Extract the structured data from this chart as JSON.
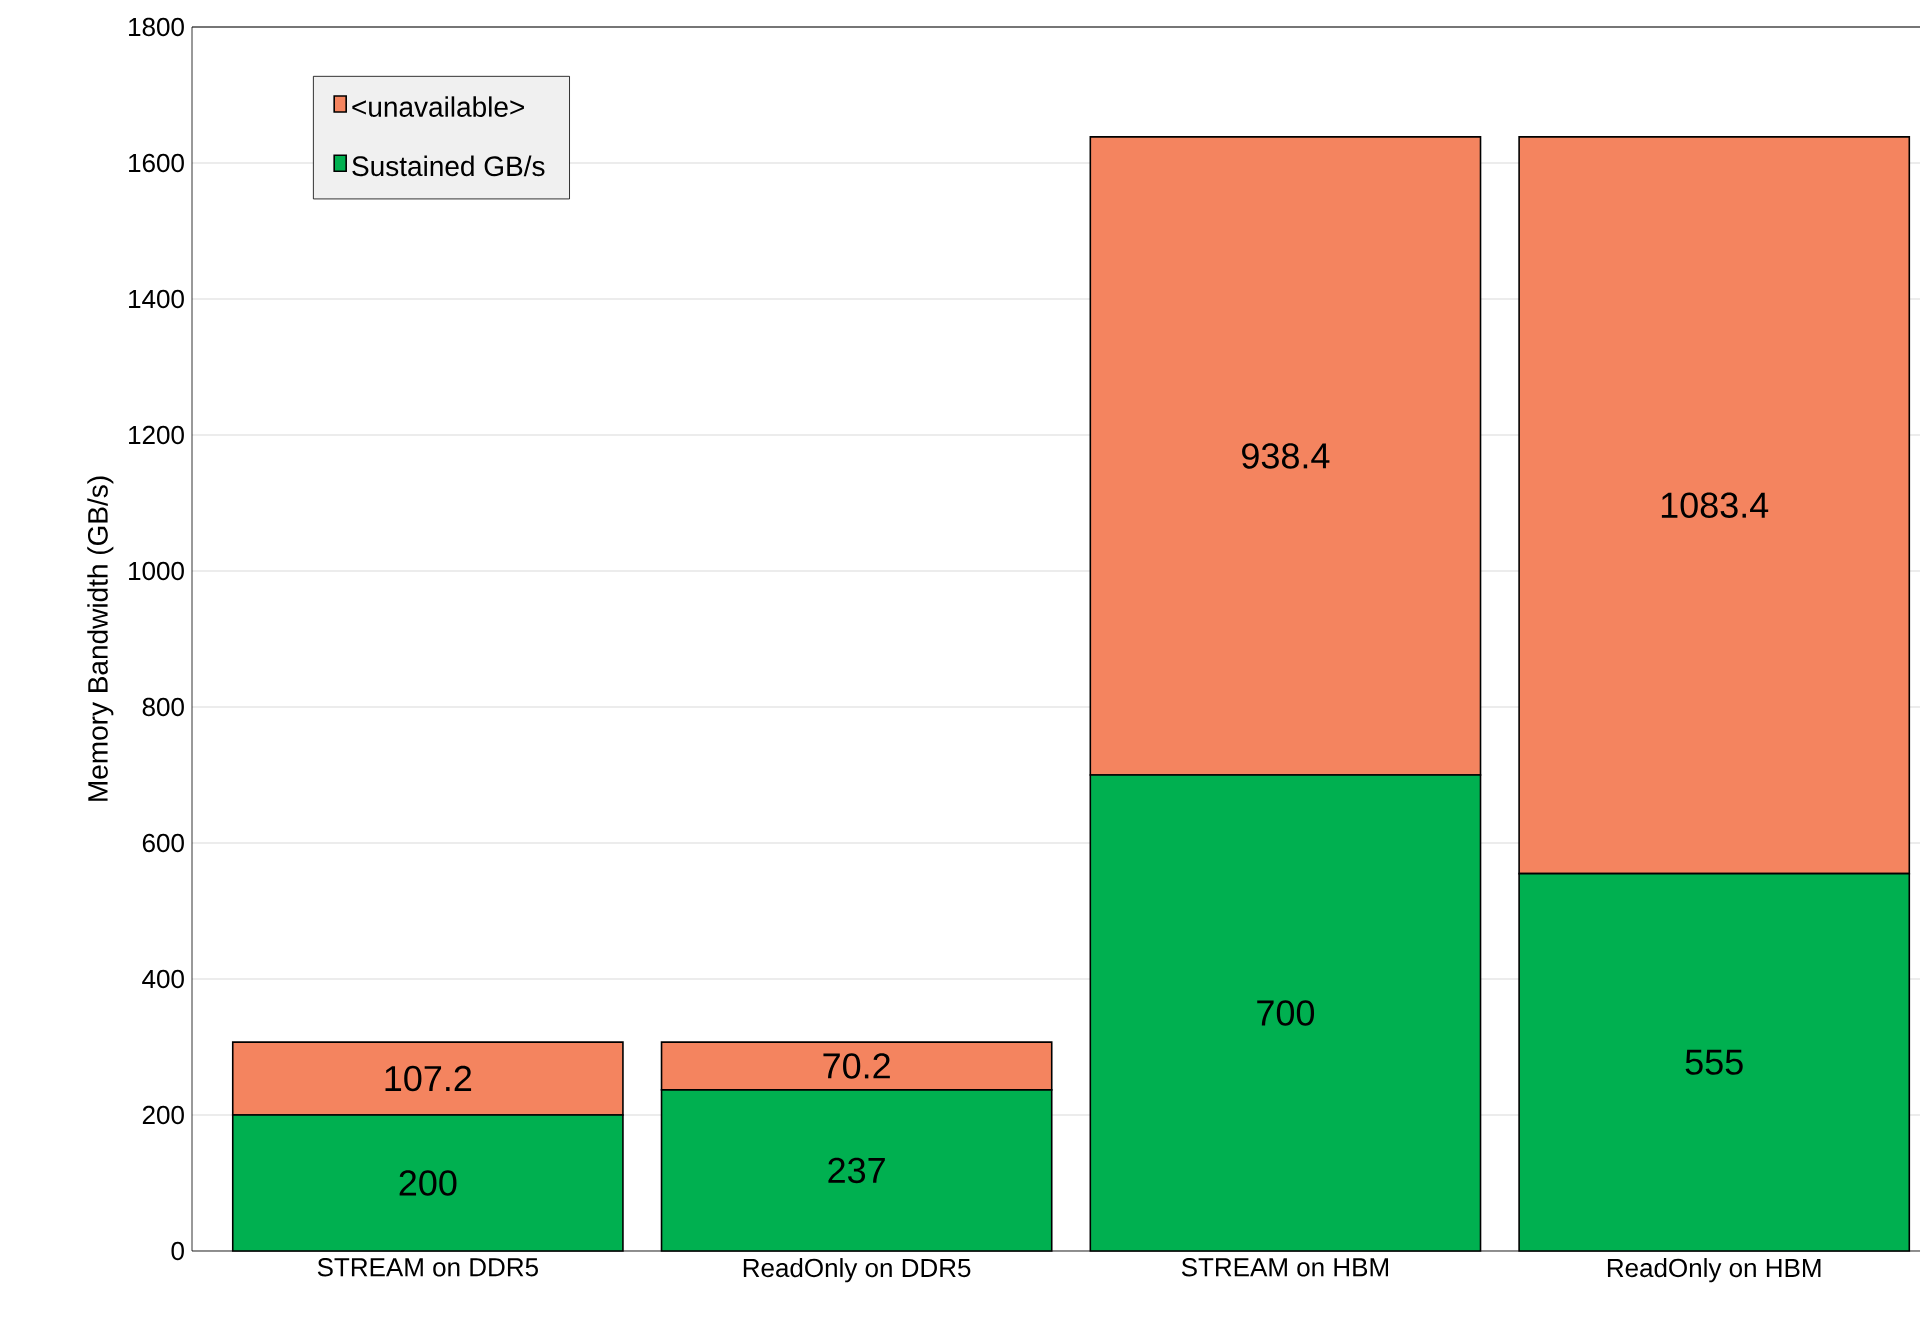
{
  "chart_data": {
    "type": "bar",
    "stacked": true,
    "ylabel": "Memory Bandwidth (GB/s)",
    "categories": [
      "STREAM on DDR5",
      "ReadOnly on DDR5",
      "STREAM on HBM",
      "ReadOnly on HBM"
    ],
    "series": [
      {
        "name": "Sustained GB/s",
        "color": "#00b050",
        "values": [
          200,
          237,
          700,
          555
        ]
      },
      {
        "name": "<unavailable>",
        "color": "#f4845f",
        "values": [
          107.2,
          70.2,
          938.4,
          1083.4
        ]
      }
    ],
    "data_labels": true,
    "ylim": [
      0,
      1800
    ],
    "yticks": [
      0,
      200,
      400,
      600,
      800,
      1000,
      1200,
      1400,
      1600,
      1800
    ],
    "grid": "y",
    "legend": "top left"
  }
}
